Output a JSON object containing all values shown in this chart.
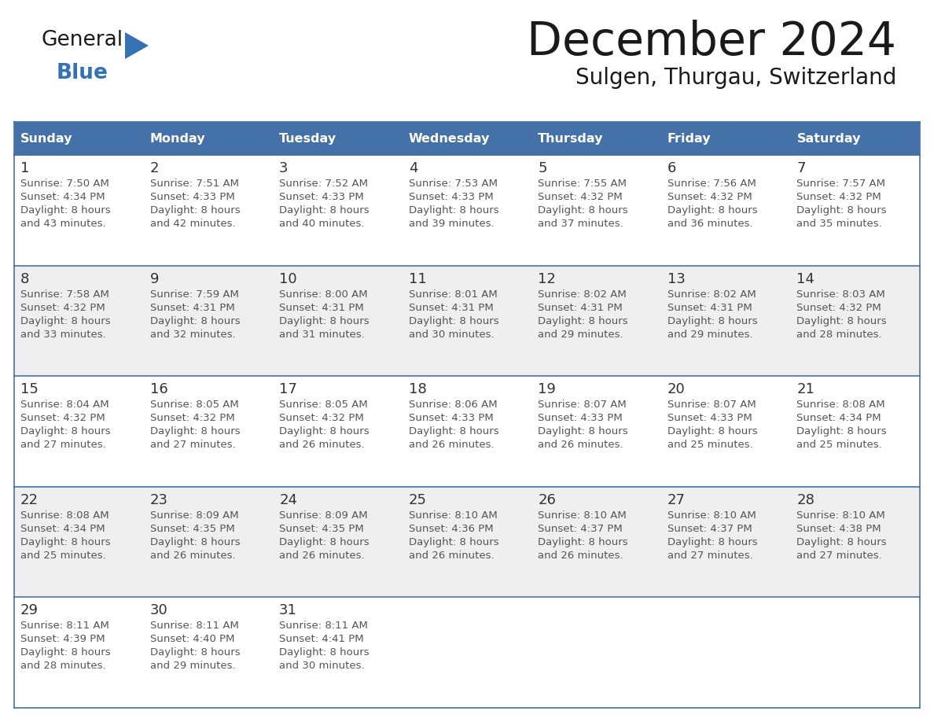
{
  "title": "December 2024",
  "subtitle": "Sulgen, Thurgau, Switzerland",
  "days_of_week": [
    "Sunday",
    "Monday",
    "Tuesday",
    "Wednesday",
    "Thursday",
    "Friday",
    "Saturday"
  ],
  "header_bg": "#4472A8",
  "header_text": "#FFFFFF",
  "cell_bg_white": "#FFFFFF",
  "cell_bg_gray": "#EFEFEF",
  "cell_border_color": "#4472A8",
  "day_num_color": "#333333",
  "info_text_color": "#555555",
  "title_color": "#1a1a1a",
  "subtitle_color": "#1a1a1a",
  "general_text_color": "#1a1a1a",
  "blue_color": "#3472B4",
  "calendar_data": [
    {
      "day": 1,
      "col": 0,
      "row": 0,
      "sunrise": "7:50 AM",
      "sunset": "4:34 PM",
      "daylight_h": "8 hours",
      "daylight_m": "43 minutes."
    },
    {
      "day": 2,
      "col": 1,
      "row": 0,
      "sunrise": "7:51 AM",
      "sunset": "4:33 PM",
      "daylight_h": "8 hours",
      "daylight_m": "42 minutes."
    },
    {
      "day": 3,
      "col": 2,
      "row": 0,
      "sunrise": "7:52 AM",
      "sunset": "4:33 PM",
      "daylight_h": "8 hours",
      "daylight_m": "40 minutes."
    },
    {
      "day": 4,
      "col": 3,
      "row": 0,
      "sunrise": "7:53 AM",
      "sunset": "4:33 PM",
      "daylight_h": "8 hours",
      "daylight_m": "39 minutes."
    },
    {
      "day": 5,
      "col": 4,
      "row": 0,
      "sunrise": "7:55 AM",
      "sunset": "4:32 PM",
      "daylight_h": "8 hours",
      "daylight_m": "37 minutes."
    },
    {
      "day": 6,
      "col": 5,
      "row": 0,
      "sunrise": "7:56 AM",
      "sunset": "4:32 PM",
      "daylight_h": "8 hours",
      "daylight_m": "36 minutes."
    },
    {
      "day": 7,
      "col": 6,
      "row": 0,
      "sunrise": "7:57 AM",
      "sunset": "4:32 PM",
      "daylight_h": "8 hours",
      "daylight_m": "35 minutes."
    },
    {
      "day": 8,
      "col": 0,
      "row": 1,
      "sunrise": "7:58 AM",
      "sunset": "4:32 PM",
      "daylight_h": "8 hours",
      "daylight_m": "33 minutes."
    },
    {
      "day": 9,
      "col": 1,
      "row": 1,
      "sunrise": "7:59 AM",
      "sunset": "4:31 PM",
      "daylight_h": "8 hours",
      "daylight_m": "32 minutes."
    },
    {
      "day": 10,
      "col": 2,
      "row": 1,
      "sunrise": "8:00 AM",
      "sunset": "4:31 PM",
      "daylight_h": "8 hours",
      "daylight_m": "31 minutes."
    },
    {
      "day": 11,
      "col": 3,
      "row": 1,
      "sunrise": "8:01 AM",
      "sunset": "4:31 PM",
      "daylight_h": "8 hours",
      "daylight_m": "30 minutes."
    },
    {
      "day": 12,
      "col": 4,
      "row": 1,
      "sunrise": "8:02 AM",
      "sunset": "4:31 PM",
      "daylight_h": "8 hours",
      "daylight_m": "29 minutes."
    },
    {
      "day": 13,
      "col": 5,
      "row": 1,
      "sunrise": "8:02 AM",
      "sunset": "4:31 PM",
      "daylight_h": "8 hours",
      "daylight_m": "29 minutes."
    },
    {
      "day": 14,
      "col": 6,
      "row": 1,
      "sunrise": "8:03 AM",
      "sunset": "4:32 PM",
      "daylight_h": "8 hours",
      "daylight_m": "28 minutes."
    },
    {
      "day": 15,
      "col": 0,
      "row": 2,
      "sunrise": "8:04 AM",
      "sunset": "4:32 PM",
      "daylight_h": "8 hours",
      "daylight_m": "27 minutes."
    },
    {
      "day": 16,
      "col": 1,
      "row": 2,
      "sunrise": "8:05 AM",
      "sunset": "4:32 PM",
      "daylight_h": "8 hours",
      "daylight_m": "27 minutes."
    },
    {
      "day": 17,
      "col": 2,
      "row": 2,
      "sunrise": "8:05 AM",
      "sunset": "4:32 PM",
      "daylight_h": "8 hours",
      "daylight_m": "26 minutes."
    },
    {
      "day": 18,
      "col": 3,
      "row": 2,
      "sunrise": "8:06 AM",
      "sunset": "4:33 PM",
      "daylight_h": "8 hours",
      "daylight_m": "26 minutes."
    },
    {
      "day": 19,
      "col": 4,
      "row": 2,
      "sunrise": "8:07 AM",
      "sunset": "4:33 PM",
      "daylight_h": "8 hours",
      "daylight_m": "26 minutes."
    },
    {
      "day": 20,
      "col": 5,
      "row": 2,
      "sunrise": "8:07 AM",
      "sunset": "4:33 PM",
      "daylight_h": "8 hours",
      "daylight_m": "25 minutes."
    },
    {
      "day": 21,
      "col": 6,
      "row": 2,
      "sunrise": "8:08 AM",
      "sunset": "4:34 PM",
      "daylight_h": "8 hours",
      "daylight_m": "25 minutes."
    },
    {
      "day": 22,
      "col": 0,
      "row": 3,
      "sunrise": "8:08 AM",
      "sunset": "4:34 PM",
      "daylight_h": "8 hours",
      "daylight_m": "25 minutes."
    },
    {
      "day": 23,
      "col": 1,
      "row": 3,
      "sunrise": "8:09 AM",
      "sunset": "4:35 PM",
      "daylight_h": "8 hours",
      "daylight_m": "26 minutes."
    },
    {
      "day": 24,
      "col": 2,
      "row": 3,
      "sunrise": "8:09 AM",
      "sunset": "4:35 PM",
      "daylight_h": "8 hours",
      "daylight_m": "26 minutes."
    },
    {
      "day": 25,
      "col": 3,
      "row": 3,
      "sunrise": "8:10 AM",
      "sunset": "4:36 PM",
      "daylight_h": "8 hours",
      "daylight_m": "26 minutes."
    },
    {
      "day": 26,
      "col": 4,
      "row": 3,
      "sunrise": "8:10 AM",
      "sunset": "4:37 PM",
      "daylight_h": "8 hours",
      "daylight_m": "26 minutes."
    },
    {
      "day": 27,
      "col": 5,
      "row": 3,
      "sunrise": "8:10 AM",
      "sunset": "4:37 PM",
      "daylight_h": "8 hours",
      "daylight_m": "27 minutes."
    },
    {
      "day": 28,
      "col": 6,
      "row": 3,
      "sunrise": "8:10 AM",
      "sunset": "4:38 PM",
      "daylight_h": "8 hours",
      "daylight_m": "27 minutes."
    },
    {
      "day": 29,
      "col": 0,
      "row": 4,
      "sunrise": "8:11 AM",
      "sunset": "4:39 PM",
      "daylight_h": "8 hours",
      "daylight_m": "28 minutes."
    },
    {
      "day": 30,
      "col": 1,
      "row": 4,
      "sunrise": "8:11 AM",
      "sunset": "4:40 PM",
      "daylight_h": "8 hours",
      "daylight_m": "29 minutes."
    },
    {
      "day": 31,
      "col": 2,
      "row": 4,
      "sunrise": "8:11 AM",
      "sunset": "4:41 PM",
      "daylight_h": "8 hours",
      "daylight_m": "30 minutes."
    }
  ]
}
